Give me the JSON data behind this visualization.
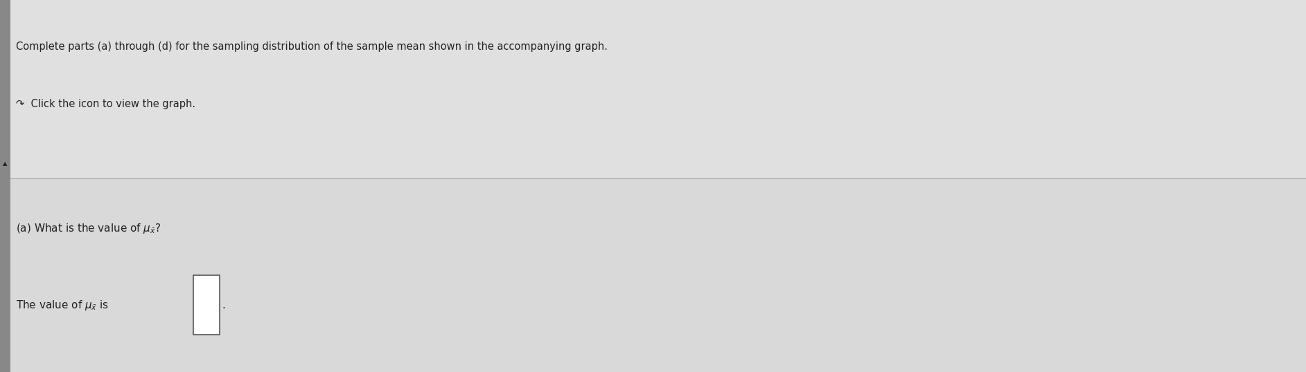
{
  "background_color": "#d9d9d9",
  "top_section_bg": "#e0e0e0",
  "bottom_section_bg": "#d9d9d9",
  "line1": "Complete parts (a) through (d) for the sampling distribution of the sample mean shown in the accompanying graph.",
  "line2": "Click the icon to view the graph.",
  "title_fontsize": 11,
  "body_fontsize": 11,
  "text_color": "#222222",
  "link_color": "#3366cc",
  "divider_color": "#aaaaaa",
  "left_sidebar_color": "#888888",
  "answer_box_edge": "#555555"
}
